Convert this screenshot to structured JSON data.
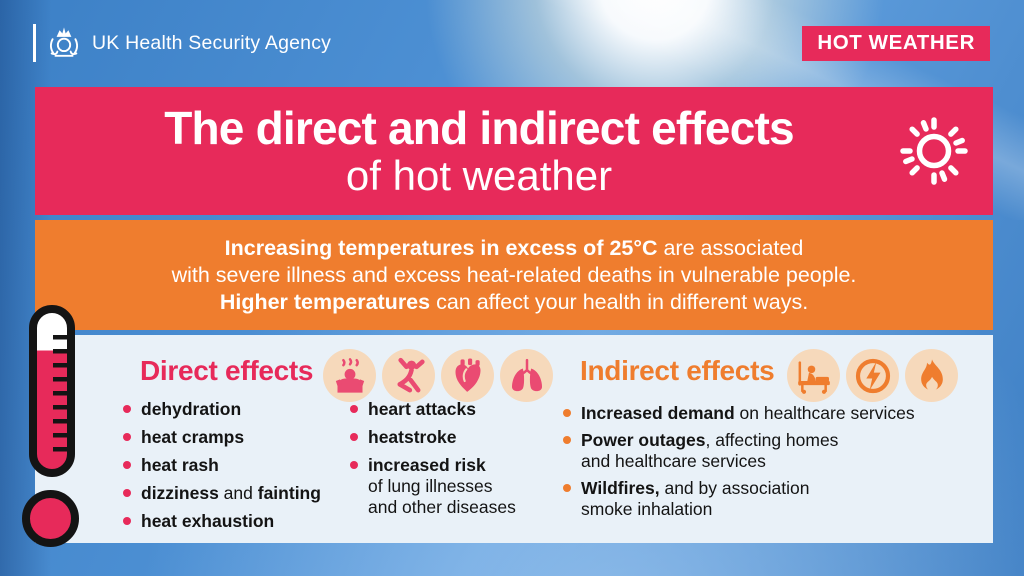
{
  "colors": {
    "pink": "#e72a5a",
    "orange": "#ef7d2e",
    "panel": "#e9f1f8",
    "peach": "#f6d9bb",
    "icon-pink": "#ea4b72",
    "sky1": "#3c80c6",
    "sky2": "#5f9edd"
  },
  "header": {
    "agency_name": "UK Health Security Agency",
    "logo_icon": "royal-crest-icon",
    "badge_label": "HOT WEATHER"
  },
  "title": {
    "line1": "The direct and indirect effects",
    "line2": "of hot weather",
    "icon": "sun-icon"
  },
  "intro": {
    "lines": [
      [
        [
          "Increasing temperatures in excess of 25°C",
          true
        ],
        [
          " are associated",
          false
        ]
      ],
      [
        [
          "with severe illness and excess heat-related deaths in vulnerable people.",
          false
        ]
      ],
      [
        [
          "Higher temperatures",
          true
        ],
        [
          " can affect your health in different ways.",
          false
        ]
      ]
    ]
  },
  "direct": {
    "heading": "Direct effects",
    "icons": [
      "overheating-person-icon",
      "heat-cramps-icon",
      "heart-icon",
      "lungs-icon"
    ],
    "col1": [
      [
        [
          "dehydration",
          true
        ]
      ],
      [
        [
          "heat cramps",
          true
        ]
      ],
      [
        [
          "heat rash",
          true
        ]
      ],
      [
        [
          "dizziness",
          true
        ],
        [
          " and ",
          false
        ],
        [
          "fainting",
          true
        ]
      ],
      [
        [
          "heat exhaustion",
          true
        ]
      ]
    ],
    "col2": [
      [
        [
          "heart attacks",
          true
        ]
      ],
      [
        [
          "heatstroke",
          true
        ]
      ],
      [
        [
          "increased risk",
          true
        ],
        [
          "\nof lung illnesses\nand other diseases",
          false
        ]
      ]
    ]
  },
  "indirect": {
    "heading": "Indirect effects",
    "icons": [
      "hospital-bed-icon",
      "power-outage-icon",
      "wildfire-icon"
    ],
    "items": [
      [
        [
          "Increased demand",
          true
        ],
        [
          " on healthcare services",
          false
        ]
      ],
      [
        [
          "Power outages",
          true
        ],
        [
          ", affecting homes\nand healthcare services",
          false
        ]
      ],
      [
        [
          "Wildfires,",
          true
        ],
        [
          " and by association\nsmoke inhalation",
          false
        ]
      ]
    ]
  },
  "decor": {
    "thermometer": "thermometer-illustration"
  }
}
